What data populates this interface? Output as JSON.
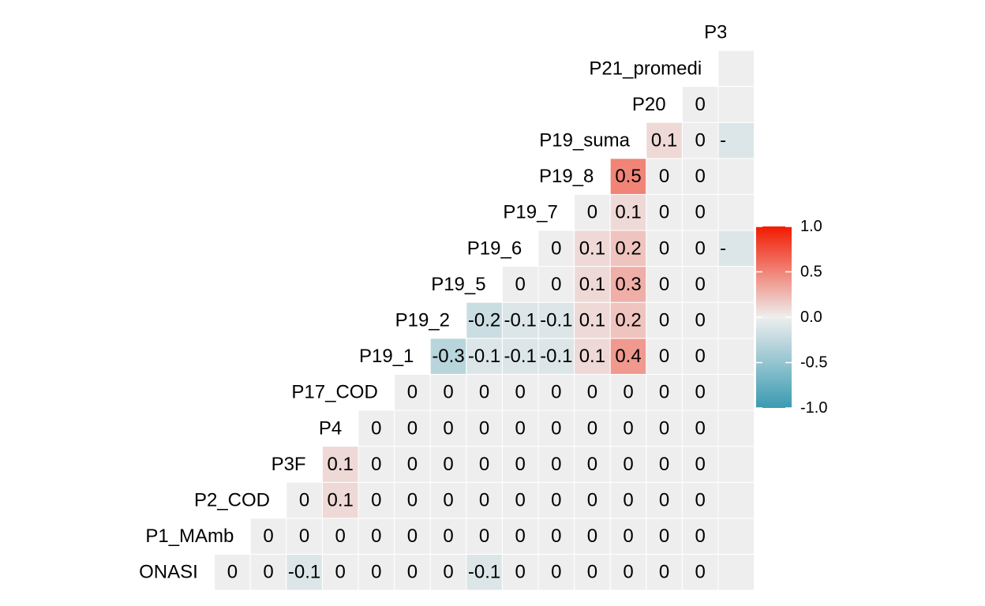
{
  "chart_data": {
    "type": "heatmap",
    "subtype": "correlation-lower-triangle",
    "title": "",
    "xlabel": "",
    "ylabel": "",
    "variables": [
      "ONASI",
      "P1_MAmb",
      "P2_COD",
      "P3F",
      "P4",
      "P17_COD",
      "P19_1",
      "P19_2",
      "P19_5",
      "P19_6",
      "P19_7",
      "P19_8",
      "P19_suma",
      "P20",
      "P21_promedio",
      "P30"
    ],
    "shown_variable_labels": [
      "ONASI",
      "P1_MAmb",
      "P2_COD",
      "P3F",
      "P4",
      "P17_COD",
      "P19_1",
      "P19_2",
      "P19_5",
      "P19_6",
      "P19_7",
      "P19_8",
      "P19_suma",
      "P20",
      "P21_promedi",
      "P30"
    ],
    "rows": [
      {
        "var": "ONASI",
        "values": [
          0,
          0,
          -0.1,
          0,
          0,
          0,
          0,
          -0.1,
          0,
          0,
          0,
          0,
          0,
          0,
          0
        ],
        "labels": [
          "0",
          "0",
          "-0.1",
          "0",
          "0",
          "0",
          "0",
          "-0.1",
          "0",
          "0",
          "0",
          "0",
          "0",
          "0",
          "0"
        ]
      },
      {
        "var": "P1_MAmb",
        "values": [
          0,
          0,
          0,
          0,
          0,
          0,
          0,
          0,
          0,
          0,
          0,
          0,
          0,
          0
        ],
        "labels": [
          "0",
          "0",
          "0",
          "0",
          "0",
          "0",
          "0",
          "0",
          "0",
          "0",
          "0",
          "0",
          "0",
          "0"
        ]
      },
      {
        "var": "P2_COD",
        "values": [
          0,
          0.1,
          0,
          0,
          0,
          0,
          0,
          0,
          0,
          0,
          0,
          0,
          0
        ],
        "labels": [
          "0",
          "0.1",
          "0",
          "0",
          "0",
          "0",
          "0",
          "0",
          "0",
          "0",
          "0",
          "0",
          "0"
        ]
      },
      {
        "var": "P3F",
        "values": [
          0.1,
          0,
          0,
          0,
          0,
          0,
          0,
          0,
          0,
          0,
          0,
          0
        ],
        "labels": [
          "0.1",
          "0",
          "0",
          "0",
          "0",
          "0",
          "0",
          "0",
          "0",
          "0",
          "0",
          "0"
        ]
      },
      {
        "var": "P4",
        "values": [
          0,
          0,
          0,
          0,
          0,
          0,
          0,
          0,
          0,
          0,
          0
        ],
        "labels": [
          "0",
          "0",
          "0",
          "0",
          "0",
          "0",
          "0",
          "0",
          "0",
          "0",
          "0"
        ]
      },
      {
        "var": "P17_COD",
        "values": [
          0,
          0,
          0,
          0,
          0,
          0,
          0,
          0,
          0,
          0
        ],
        "labels": [
          "0",
          "0",
          "0",
          "0",
          "0",
          "0",
          "0",
          "0",
          "0",
          "0"
        ]
      },
      {
        "var": "P19_1",
        "values": [
          -0.3,
          -0.1,
          -0.1,
          -0.1,
          0.1,
          0.4,
          0,
          0,
          0
        ],
        "labels": [
          "-0.3",
          "-0.1",
          "-0.1",
          "-0.1",
          "0.1",
          "0.4",
          "0",
          "0",
          "0"
        ]
      },
      {
        "var": "P19_2",
        "values": [
          -0.2,
          -0.1,
          -0.1,
          0.1,
          0.2,
          0,
          0,
          0
        ],
        "labels": [
          "-0.2",
          "-0.1",
          "-0.1",
          "0.1",
          "0.2",
          "0",
          "0",
          "0"
        ]
      },
      {
        "var": "P19_5",
        "values": [
          0,
          0,
          0.1,
          0.3,
          0,
          0,
          0
        ],
        "labels": [
          "0",
          "0",
          "0.1",
          "0.3",
          "0",
          "0",
          "0"
        ]
      },
      {
        "var": "P19_6",
        "values": [
          0,
          0.1,
          0.2,
          0,
          0,
          -0.1
        ],
        "labels": [
          "0",
          "0.1",
          "0.2",
          "0",
          "0",
          "-0.1"
        ]
      },
      {
        "var": "P19_7",
        "values": [
          0,
          0.1,
          0,
          0,
          0
        ],
        "labels": [
          "0",
          "0.1",
          "0",
          "0",
          "0"
        ]
      },
      {
        "var": "P19_8",
        "values": [
          0.5,
          0,
          0,
          0
        ],
        "labels": [
          "0.5",
          "0",
          "0",
          "0"
        ]
      },
      {
        "var": "P19_suma",
        "values": [
          0.1,
          0,
          -0.1
        ],
        "labels": [
          "0.1",
          "0",
          "-0.1"
        ]
      },
      {
        "var": "P20",
        "values": [
          0,
          0
        ],
        "labels": [
          "0",
          "0"
        ]
      },
      {
        "var": "P21_promedio",
        "values": [
          0
        ],
        "labels": [
          "0"
        ]
      }
    ],
    "value_range": [
      -1,
      1
    ],
    "colors": {
      "low": "#3A9AB2",
      "mid": "#EEEEEE",
      "high": "#F21A00"
    },
    "legend": {
      "position": "right",
      "ticks": [
        "1.0",
        "0.5",
        "0.0",
        "-0.5",
        "-1.0"
      ],
      "tick_values": [
        1.0,
        0.5,
        0.0,
        -0.5,
        -1.0
      ]
    },
    "grid": false
  }
}
